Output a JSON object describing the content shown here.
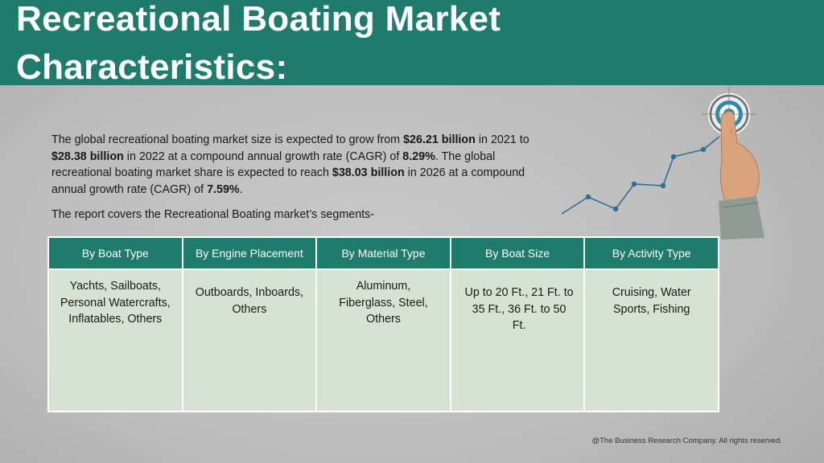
{
  "header": {
    "title_line1": "Recreational Boating Market",
    "title_line2": "Characteristics:"
  },
  "body": {
    "p1_a": "The global recreational boating market size is expected to grow from ",
    "v1": "$26.21 billion",
    "p1_b": " in 2021 to ",
    "v2": "$28.38 billion",
    "p1_c": " in 2022 at a compound annual growth rate (CAGR) of ",
    "v3": "8.29%",
    "p1_d": ". The global recreational boating market share is expected to reach ",
    "v4": "$38.03 billion",
    "p1_e": " in 2026 at a compound annual growth rate (CAGR) of ",
    "v5": "7.59%",
    "p1_f": ".",
    "segments_note": "The report covers the Recreational Boating market’s segments-"
  },
  "table": {
    "headers": [
      "By Boat Type",
      "By Engine Placement",
      "By Material Type",
      "By Boat Size",
      "By Activity Type"
    ],
    "cells": [
      "Yachts, Sailboats, Personal Watercrafts, Inflatables, Others",
      "Outboards, Inboards, Others",
      "Aluminum, Fiberglass, Steel, Others",
      "Up to 20 Ft., 21 Ft. to 35 Ft., 36 Ft. to 50 Ft.",
      "Cruising, Water Sports, Fishing"
    ]
  },
  "footer": {
    "copyright": "@The Business Research Company. All rights reserved."
  },
  "colors": {
    "header_teal": "#1f7b6c",
    "cell_green": "#d6e3d2",
    "chart_blue": "#2e6f95"
  },
  "icons": [
    "target-icon",
    "pointing-hand-icon",
    "growth-line-icon"
  ]
}
